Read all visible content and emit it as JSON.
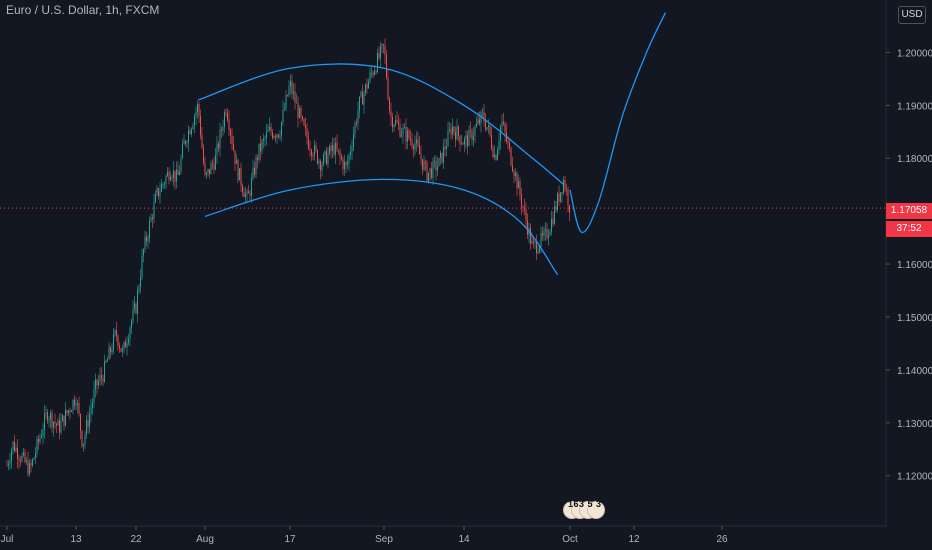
{
  "header": {
    "title": "Euro / U.S. Dollar, 1h, FXCM",
    "currency": "USD"
  },
  "price_tag": {
    "price": "1.17058",
    "countdown": "37:52"
  },
  "events": {
    "counts": "163 5 3"
  },
  "colors": {
    "background": "#131722",
    "up": "#26a69a",
    "down": "#ef5350",
    "drawing": "#2196f3",
    "price_line": "#f23645"
  },
  "chart_data": {
    "type": "candlestick",
    "symbol": "Euro / U.S. Dollar",
    "interval": "1h",
    "ylim": [
      1.1105,
      1.2099
    ],
    "y_ticks": [
      1.12,
      1.13,
      1.14,
      1.15,
      1.16,
      1.17,
      1.18,
      1.19,
      1.2
    ],
    "y_tick_labels": [
      "1.12000",
      "1.13000",
      "1.14000",
      "1.15000",
      "1.16000",
      "1.17000",
      "1.18000",
      "1.19000",
      "1.20000"
    ],
    "x_tick_labels": [
      "Jul",
      "13",
      "22",
      "Aug",
      "17",
      "Sep",
      "14",
      "Oct",
      "12",
      "26"
    ],
    "current_price": 1.17058,
    "grid": false,
    "price_path": [
      [
        "Jul",
        1.122
      ],
      [
        "Jul 2",
        1.126
      ],
      [
        "Jul 5",
        1.121
      ],
      [
        "Jul 8",
        1.132
      ],
      [
        "Jul 10",
        1.129
      ],
      [
        "Jul 13",
        1.135
      ],
      [
        "Jul 14",
        1.126
      ],
      [
        "Jul 16",
        1.137
      ],
      [
        "Jul 17",
        1.139
      ],
      [
        "Jul 19",
        1.147
      ],
      [
        "Jul 20",
        1.143
      ],
      [
        "Jul 21",
        1.148
      ],
      [
        "Jul 22",
        1.152
      ],
      [
        "Jul 23",
        1.162
      ],
      [
        "Jul 25",
        1.173
      ],
      [
        "Jul 27",
        1.178
      ],
      [
        "Jul 28",
        1.176
      ],
      [
        "Jul 29",
        1.183
      ],
      [
        "Jul 31",
        1.19
      ],
      [
        "Aug 1",
        1.176
      ],
      [
        "Aug 3",
        1.18
      ],
      [
        "Aug 5",
        1.19
      ],
      [
        "Aug 7",
        1.178
      ],
      [
        "Aug 9",
        1.172
      ],
      [
        "Aug 11",
        1.181
      ],
      [
        "Aug 13",
        1.185
      ],
      [
        "Aug 15",
        1.185
      ],
      [
        "Aug 17",
        1.194
      ],
      [
        "Aug 19",
        1.186
      ],
      [
        "Aug 20",
        1.183
      ],
      [
        "Aug 22",
        1.179
      ],
      [
        "Aug 24",
        1.182
      ],
      [
        "Aug 26",
        1.178
      ],
      [
        "Aug 28",
        1.19
      ],
      [
        "Aug 30",
        1.196
      ],
      [
        "Sep 1",
        1.201
      ],
      [
        "Sep 2",
        1.188
      ],
      [
        "Sep 4",
        1.185
      ],
      [
        "Sep 6",
        1.183
      ],
      [
        "Sep 8",
        1.177
      ],
      [
        "Sep 10",
        1.179
      ],
      [
        "Sep 12",
        1.186
      ],
      [
        "Sep 14",
        1.183
      ],
      [
        "Sep 15",
        1.184
      ],
      [
        "Sep 17",
        1.188
      ],
      [
        "Sep 18",
        1.185
      ],
      [
        "Sep 19",
        1.18
      ],
      [
        "Sep 20",
        1.187
      ],
      [
        "Sep 22",
        1.178
      ],
      [
        "Sep 24",
        1.168
      ],
      [
        "Sep 25",
        1.163
      ],
      [
        "Sep 27",
        1.165
      ],
      [
        "Sep 28",
        1.168
      ],
      [
        "Sep 29",
        1.172
      ],
      [
        "Sep 30",
        1.176
      ],
      [
        "Oct 1",
        1.1706
      ]
    ],
    "drawings": {
      "upper_arc": [
        [
          "Jul 31",
          1.191
        ],
        [
          "Aug 17",
          1.197
        ],
        [
          "Sep 1",
          1.197
        ],
        [
          "Sep 14",
          1.19
        ],
        [
          "Sep 25",
          1.18
        ],
        [
          "Sep 30",
          1.175
        ]
      ],
      "lower_arc": [
        [
          "Aug 1",
          1.169
        ],
        [
          "Aug 17",
          1.174
        ],
        [
          "Sep 1",
          1.176
        ],
        [
          "Sep 14",
          1.174
        ],
        [
          "Sep 23",
          1.168
        ],
        [
          "Sep 29",
          1.158
        ]
      ],
      "projection": [
        [
          "Oct 1",
          1.174
        ],
        [
          "Oct 3",
          1.166
        ],
        [
          "Oct 6",
          1.172
        ],
        [
          "Oct 10",
          1.188
        ],
        [
          "Oct 14",
          1.2
        ],
        [
          "Oct 17",
          1.2075
        ]
      ]
    }
  }
}
